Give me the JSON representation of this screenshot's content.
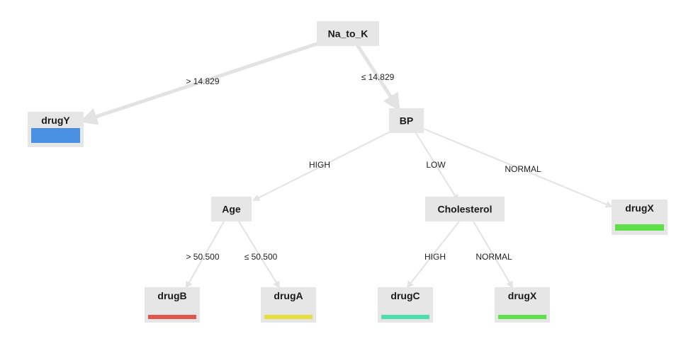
{
  "nodes": [
    {
      "id": "root",
      "label": "Na_to_K",
      "kind": "split"
    },
    {
      "id": "leaf-drugY",
      "label": "drugY",
      "kind": "leaf",
      "color": "#4a90e2"
    },
    {
      "id": "bp",
      "label": "BP",
      "kind": "split"
    },
    {
      "id": "age",
      "label": "Age",
      "kind": "split"
    },
    {
      "id": "cholesterol",
      "label": "Cholesterol",
      "kind": "split"
    },
    {
      "id": "leaf-drugX-1",
      "label": "drugX",
      "kind": "leaf",
      "color": "#5fe04a"
    },
    {
      "id": "leaf-drugB",
      "label": "drugB",
      "kind": "leaf",
      "color": "#e0564a"
    },
    {
      "id": "leaf-drugA",
      "label": "drugA",
      "kind": "leaf",
      "color": "#e6dc3c"
    },
    {
      "id": "leaf-drugC",
      "label": "drugC",
      "kind": "leaf",
      "color": "#4fe0b0"
    },
    {
      "id": "leaf-drugX-2",
      "label": "drugX",
      "kind": "leaf",
      "color": "#5fe04a"
    }
  ],
  "edges": [
    {
      "from": "root",
      "to": "leaf-drugY",
      "label": "> 14.829",
      "weight": "heavy"
    },
    {
      "from": "root",
      "to": "bp",
      "label": "≤ 14.829",
      "weight": "heavy"
    },
    {
      "from": "bp",
      "to": "age",
      "label": "HIGH",
      "weight": "light"
    },
    {
      "from": "bp",
      "to": "cholesterol",
      "label": "LOW",
      "weight": "light"
    },
    {
      "from": "bp",
      "to": "leaf-drugX-1",
      "label": "NORMAL",
      "weight": "light"
    },
    {
      "from": "age",
      "to": "leaf-drugB",
      "label": "> 50.500",
      "weight": "light"
    },
    {
      "from": "age",
      "to": "leaf-drugA",
      "label": "≤ 50.500",
      "weight": "light"
    },
    {
      "from": "cholesterol",
      "to": "leaf-drugC",
      "label": "HIGH",
      "weight": "light"
    },
    {
      "from": "cholesterol",
      "to": "leaf-drugX-2",
      "label": "NORMAL",
      "weight": "light"
    }
  ]
}
